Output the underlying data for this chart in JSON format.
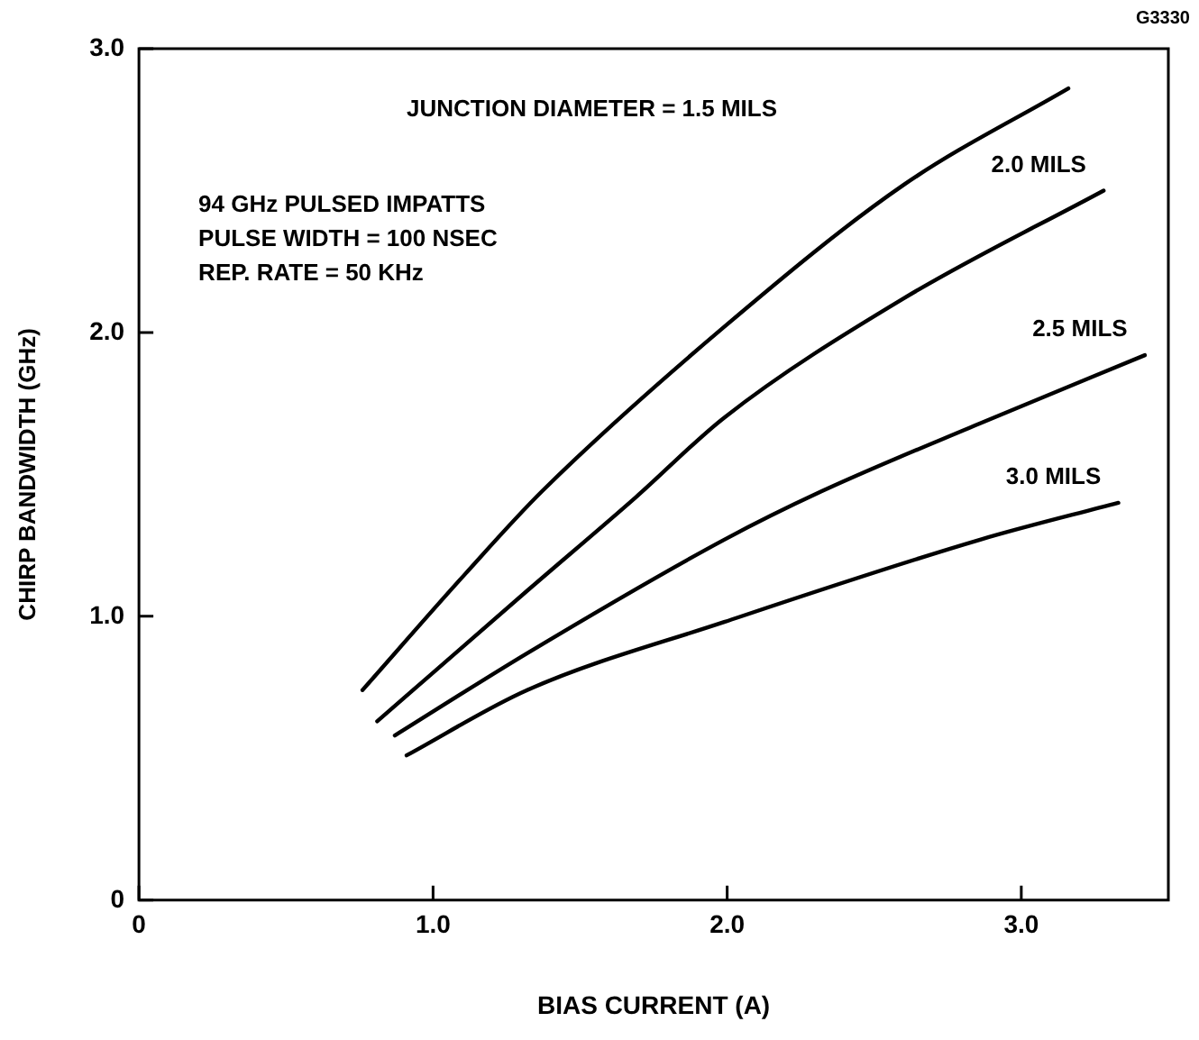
{
  "chart_data": {
    "type": "line",
    "xlabel": "BIAS CURRENT (A)",
    "ylabel": "CHIRP BANDWIDTH (GHz)",
    "xlim": [
      0,
      3.5
    ],
    "xticks": [
      0,
      {
        "value": 1,
        "label": "1.0"
      },
      {
        "value": 2,
        "label": "2.0"
      },
      {
        "value": 3,
        "label": "3.0"
      }
    ],
    "ylim": [
      0,
      3
    ],
    "yticks": [
      0,
      {
        "value": 1,
        "label": "1.0"
      },
      {
        "value": 2,
        "label": "2.0"
      },
      {
        "value": 3,
        "label": "3.0"
      }
    ],
    "grid": false,
    "legend": false,
    "marker": "none",
    "line_style": "solid",
    "series": [
      {
        "color": "#000000",
        "x": [
          0.76,
          1.11,
          1.37,
          1.99,
          2.6,
          3.16
        ],
        "values": [
          0.74,
          1.15,
          1.44,
          2.02,
          2.52,
          2.86
        ]
      },
      {
        "name": "2.0 MILS",
        "color": "#000000",
        "x": [
          0.81,
          1.32,
          1.69,
          1.99,
          2.6,
          3.28
        ],
        "values": [
          0.63,
          1.09,
          1.42,
          1.7,
          2.12,
          2.5
        ]
      },
      {
        "name": "2.5 MILS",
        "color": "#000000",
        "x": [
          0.87,
          1.32,
          1.99,
          2.32,
          2.86,
          3.42
        ],
        "values": [
          0.58,
          0.87,
          1.27,
          1.44,
          1.68,
          1.92
        ]
      },
      {
        "name": "3.0 MILS",
        "color": "#000000",
        "x": [
          0.91,
          1.32,
          1.99,
          2.86,
          3.33
        ],
        "values": [
          0.51,
          0.74,
          0.98,
          1.27,
          1.4
        ]
      }
    ],
    "annotations": [
      "G3330",
      "JUNCTION DIAMETER = 1.5 MILS",
      "94 GHz PULSED IMPATTS",
      "PULSE WIDTH = 100 NSEC",
      "REP. RATE = 50 KHz"
    ]
  }
}
